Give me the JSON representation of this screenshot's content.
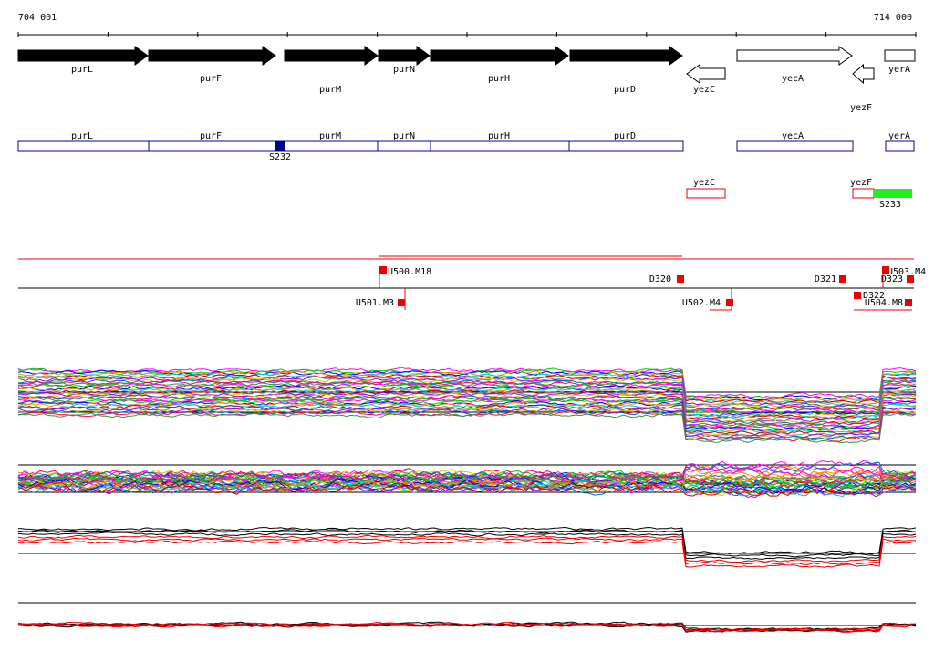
{
  "ruler": {
    "start": "704 001",
    "end": "714 000"
  },
  "genes": [
    {
      "label": "purL"
    },
    {
      "label": "purF"
    },
    {
      "label": "purM"
    },
    {
      "label": "purN"
    },
    {
      "label": "purH"
    },
    {
      "label": "purD"
    },
    {
      "label": "yezC"
    },
    {
      "label": "yecA"
    },
    {
      "label": "yezF"
    },
    {
      "label": "yerA"
    }
  ],
  "segments": [
    {
      "label": "purL"
    },
    {
      "label": "purF"
    },
    {
      "label": "purM"
    },
    {
      "label": "purN"
    },
    {
      "label": "purH"
    },
    {
      "label": "purD"
    },
    {
      "label": "yecA"
    },
    {
      "label": "yerA"
    },
    {
      "label": "S232"
    }
  ],
  "antisense": [
    {
      "label": "yezC"
    },
    {
      "label": "yezF"
    },
    {
      "label": "S233"
    }
  ],
  "features": [
    {
      "label": "U500.M18"
    },
    {
      "label": "D320"
    },
    {
      "label": "D321"
    },
    {
      "label": "U503.M4"
    },
    {
      "label": "D323"
    },
    {
      "label": "U501.M3"
    },
    {
      "label": "U502.M4"
    },
    {
      "label": "D322"
    },
    {
      "label": "U504.M8"
    }
  ]
}
